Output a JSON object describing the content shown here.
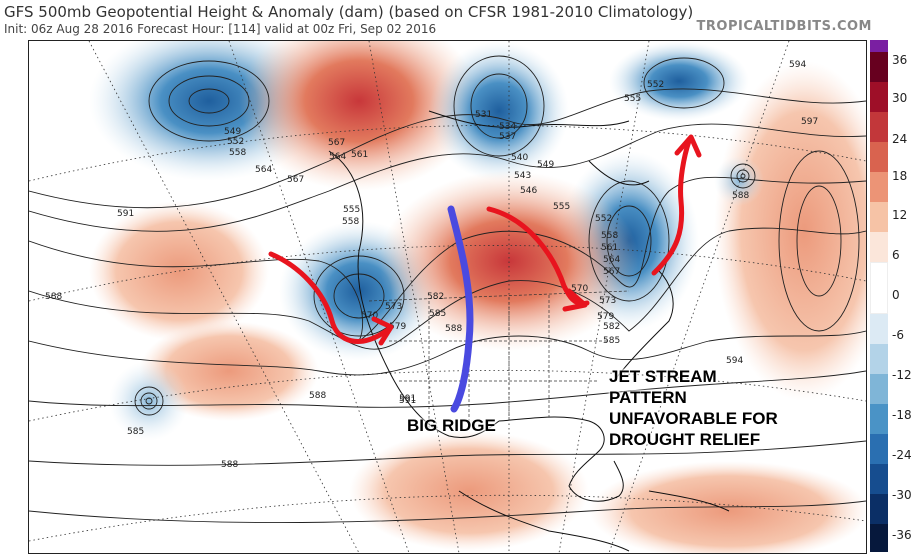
{
  "header": {
    "title": "GFS 500mb Geopotential Height & Anomaly (dam) (based on CFSR 1981-2010 Climatology)",
    "subtitle": "Init: 06z Aug 28 2016   Forecast Hour: [114]   valid at 00z Fri, Sep 02 2016",
    "brand": "TROPICALTIDBITS.COM"
  },
  "colorbar": {
    "labels": [
      "36",
      "30",
      "24",
      "18",
      "12",
      "6",
      "0",
      "-6",
      "-12",
      "-18",
      "-24",
      "-30",
      "-36"
    ],
    "colors": [
      "#7a1fa2",
      "#67001f",
      "#9e0f28",
      "#c2373a",
      "#d9634f",
      "#ec9476",
      "#f6c3a6",
      "#fbe6da",
      "#ffffff",
      "#dceaf4",
      "#b3d3e8",
      "#7fb5d7",
      "#4a93c6",
      "#2a6fb1",
      "#164d8f",
      "#0b2f66",
      "#06183c"
    ]
  },
  "annotations": {
    "ridge": "BIG RIDGE",
    "jet_lines": [
      "JET STREAM",
      "PATTERN",
      "UNFAVORABLE FOR",
      "DROUGHT RELIEF"
    ]
  },
  "contour_labels": [
    "549",
    "552",
    "558",
    "564",
    "567",
    "591",
    "588",
    "564",
    "561",
    "567",
    "555",
    "558",
    "570",
    "573",
    "579",
    "582",
    "585",
    "588",
    "591",
    "543",
    "546",
    "549",
    "540",
    "531",
    "534",
    "537",
    "552",
    "555",
    "558",
    "561",
    "564",
    "567",
    "570",
    "573",
    "579",
    "582",
    "585",
    "594",
    "597",
    "588",
    "585",
    "588",
    "591",
    "588",
    "594",
    "552",
    "555"
  ],
  "colors": {
    "ridge_line": "#4a4ae0",
    "arrow": "#e8141e",
    "warm_strong": "#c8373a",
    "warm_light": "#f2b398",
    "cool_strong": "#3a7fbf",
    "cool_light": "#b9d7ea"
  }
}
